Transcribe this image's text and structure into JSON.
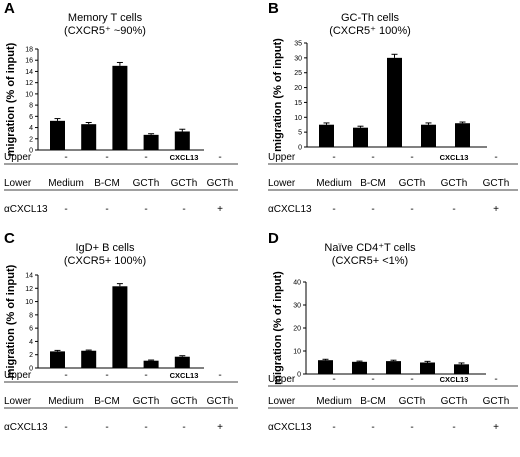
{
  "rows": {
    "upper_label": "Upper",
    "lower_label": "Lower",
    "antibody_label": "αCXCL13"
  },
  "ylabel": "migration (% of input)",
  "colors": {
    "bar": "#000000",
    "axis": "#000000",
    "background": "#ffffff"
  },
  "chart_data": [
    {
      "type": "bar",
      "letter": "A",
      "title_line1": "Memory T cells",
      "title_line2": "(CXCR5⁺ ~90%)",
      "ylabel": "migration (% of input)",
      "ylim": [
        0,
        18
      ],
      "yticks": [
        0,
        2,
        4,
        6,
        8,
        10,
        12,
        14,
        16,
        18
      ],
      "values": [
        5.2,
        4.6,
        15.0,
        2.7,
        3.3
      ],
      "errors": [
        0.4,
        0.3,
        0.6,
        0.2,
        0.4
      ],
      "upper": [
        "-",
        "-",
        "-",
        "CXCL13",
        "-"
      ],
      "lower": [
        "Medium",
        "B-CM",
        "GCTh",
        "GCTh",
        "GCTh"
      ],
      "antibody": [
        "-",
        "-",
        "-",
        "-",
        "+"
      ]
    },
    {
      "type": "bar",
      "letter": "B",
      "title_line1": "GC-Th cells",
      "title_line2": "(CXCR5⁺ 100%)",
      "ylabel": "migration (% of input)",
      "ylim": [
        0,
        35
      ],
      "yticks": [
        0,
        5,
        10,
        15,
        20,
        25,
        30,
        35
      ],
      "values": [
        7.5,
        6.5,
        30.0,
        7.5,
        8.0
      ],
      "errors": [
        0.6,
        0.5,
        1.2,
        0.6,
        0.4
      ],
      "upper": [
        "-",
        "-",
        "-",
        "CXCL13",
        "-"
      ],
      "lower": [
        "Medium",
        "B-CM",
        "GCTh",
        "GCTh",
        "GCTh"
      ],
      "antibody": [
        "-",
        "-",
        "-",
        "-",
        "+"
      ]
    },
    {
      "type": "bar",
      "letter": "C",
      "title_line1": "IgD+ B cells",
      "title_line2": "(CXCR5+ 100%)",
      "ylabel": "migration (% of input)",
      "ylim": [
        0,
        14
      ],
      "yticks": [
        0,
        2,
        4,
        6,
        8,
        10,
        12,
        14
      ],
      "values": [
        2.5,
        2.6,
        12.3,
        1.1,
        1.7
      ],
      "errors": [
        0.15,
        0.1,
        0.4,
        0.1,
        0.15
      ],
      "upper": [
        "-",
        "-",
        "-",
        "CXCL13",
        "-"
      ],
      "lower": [
        "Medium",
        "B-CM",
        "GCTh",
        "GCTh",
        "GCTh"
      ],
      "antibody": [
        "-",
        "-",
        "-",
        "-",
        "+"
      ]
    },
    {
      "type": "bar",
      "letter": "D",
      "title_line1": "Naïve CD4⁺T cells",
      "title_line2": "(CXCR5+ <1%)",
      "ylabel": "migration (% of input)",
      "ylim": [
        0,
        40
      ],
      "yticks": [
        0,
        10,
        20,
        30,
        40
      ],
      "values": [
        6.0,
        5.3,
        5.6,
        5.0,
        4.2
      ],
      "errors": [
        0.4,
        0.3,
        0.4,
        0.5,
        0.6
      ],
      "upper": [
        "-",
        "-",
        "-",
        "CXCL13",
        "-"
      ],
      "lower": [
        "Medium",
        "B-CM",
        "GCTh",
        "GCTh",
        "GCTh"
      ],
      "antibody": [
        "-",
        "-",
        "-",
        "-",
        "+"
      ]
    }
  ]
}
